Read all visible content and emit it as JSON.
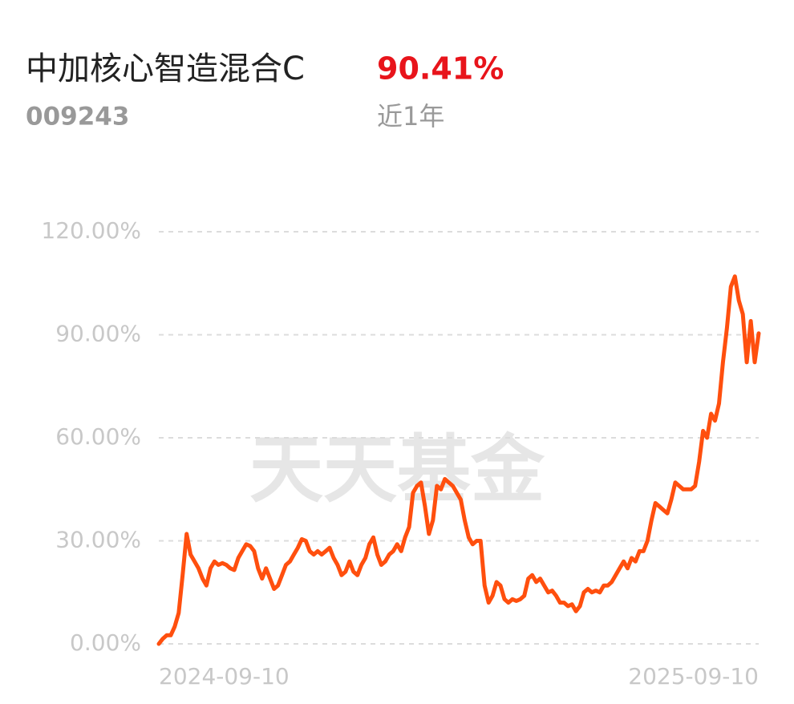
{
  "chart_data": {
    "type": "line",
    "title": "中加核心智造混合C",
    "code": "009243",
    "return": "90.41%",
    "period": "近1年",
    "watermark": "天天基金",
    "categories": [
      "2024-09-10",
      null,
      null,
      null,
      null,
      null,
      null,
      null,
      null,
      null,
      null,
      null,
      null,
      null,
      null,
      null,
      null,
      null,
      null,
      null,
      null,
      null,
      null,
      null,
      null,
      null,
      null,
      null,
      null,
      null,
      null,
      null,
      null,
      null,
      null,
      null,
      null,
      null,
      null,
      null,
      null,
      null,
      null,
      null,
      null,
      null,
      null,
      null,
      null,
      null,
      null,
      null,
      null,
      null,
      null,
      null,
      null,
      null,
      null,
      null,
      null,
      null,
      null,
      null,
      null,
      null,
      null,
      null,
      null,
      null,
      null,
      null,
      null,
      null,
      null,
      null,
      null,
      null,
      null,
      null,
      null,
      null,
      null,
      null,
      null,
      null,
      null,
      null,
      null,
      null,
      null,
      null,
      null,
      null,
      null,
      null,
      null,
      null,
      null,
      null,
      null,
      null,
      null,
      null,
      null,
      null,
      null,
      null,
      null,
      null,
      null,
      null,
      null,
      null,
      null,
      null,
      null,
      null,
      null,
      null,
      null,
      null,
      null,
      null,
      null,
      null,
      null,
      null,
      null,
      null,
      null,
      null,
      null,
      null,
      null,
      null,
      null,
      null,
      null,
      null,
      null,
      null,
      null,
      null,
      null,
      null,
      null,
      null,
      null,
      null,
      null,
      "2025-09-10"
    ],
    "series": [
      {
        "color": "#ff4f0e",
        "values": [
          0,
          1.5,
          2.5,
          2.5,
          5,
          9,
          20,
          32,
          26,
          24,
          22,
          19,
          17,
          22,
          24,
          23,
          23.5,
          23,
          22,
          21.5,
          25,
          27,
          29,
          28.5,
          27,
          22,
          19,
          22,
          19,
          16,
          17,
          20,
          23,
          24,
          26,
          28,
          30.5,
          30,
          27,
          26,
          27,
          26,
          27,
          28,
          25,
          23,
          20,
          21,
          24,
          21,
          20,
          23,
          25,
          29,
          31,
          26,
          23,
          24,
          26,
          27,
          29,
          27,
          31,
          34,
          44,
          46,
          47,
          40,
          32,
          36,
          46,
          45,
          48,
          47,
          46,
          44,
          42,
          36,
          31,
          29,
          30,
          30,
          17,
          12,
          14,
          18,
          17,
          13,
          12,
          13,
          12.5,
          13,
          14,
          19,
          20,
          18,
          19,
          17,
          15,
          15.5,
          14,
          12,
          12,
          11,
          11.5,
          9.5,
          11,
          15,
          16,
          15,
          15.5,
          15,
          17,
          17,
          18,
          20,
          22,
          24,
          22,
          25,
          24,
          27,
          27,
          30,
          36,
          41,
          40,
          39,
          38,
          42,
          47,
          46,
          45,
          45,
          45,
          46,
          53,
          62,
          60,
          67,
          65,
          70,
          82,
          92,
          104,
          107,
          100,
          96,
          82,
          94,
          82,
          90.41
        ]
      }
    ],
    "ylim": [
      0,
      120
    ],
    "yticks": [
      {
        "value": 0,
        "label": "0.00%"
      },
      {
        "value": 30,
        "label": "30.00%"
      },
      {
        "value": 60,
        "label": "60.00%"
      },
      {
        "value": 90,
        "label": "90.00%"
      },
      {
        "value": 120,
        "label": "120.00%"
      }
    ],
    "grid": true
  }
}
